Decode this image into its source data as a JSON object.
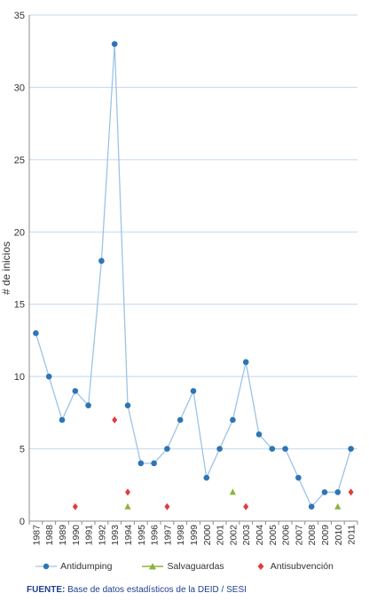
{
  "chart_data": {
    "type": "line",
    "ylabel": "# de inicios",
    "ylim": [
      0,
      35
    ],
    "yticks": [
      0,
      5,
      10,
      15,
      20,
      25,
      30,
      35
    ],
    "grid": true,
    "legend_position": "bottom",
    "categories": [
      "1987",
      "1988",
      "1989",
      "1990",
      "1991",
      "1992",
      "1993",
      "1994",
      "1995",
      "1996",
      "1997",
      "1998",
      "1999",
      "2000",
      "2001",
      "2002",
      "2003",
      "2004",
      "2005",
      "2006",
      "2007",
      "2008",
      "2009",
      "2010",
      "2011"
    ],
    "series": [
      {
        "name": "Antidumping",
        "style": "line-with-circle-markers",
        "color": "#2e75b6",
        "line_color": "#9dc3e6",
        "values": [
          13,
          10,
          7,
          9,
          8,
          18,
          33,
          8,
          4,
          4,
          5,
          7,
          9,
          3,
          5,
          7,
          11,
          6,
          5,
          5,
          3,
          1,
          2,
          2,
          5
        ]
      },
      {
        "name": "Salvaguardas",
        "style": "triangle-markers",
        "color": "#8cb43c",
        "values": [
          null,
          null,
          null,
          null,
          null,
          null,
          null,
          1,
          null,
          null,
          null,
          null,
          null,
          null,
          null,
          2,
          null,
          null,
          null,
          null,
          null,
          null,
          null,
          1,
          null
        ]
      },
      {
        "name": "Antisubvención",
        "style": "diamond-markers",
        "color": "#e03c3c",
        "values": [
          null,
          null,
          null,
          1,
          null,
          null,
          7,
          2,
          null,
          null,
          1,
          null,
          null,
          null,
          null,
          null,
          1,
          null,
          null,
          null,
          null,
          null,
          null,
          null,
          2
        ]
      }
    ]
  },
  "source": {
    "lead": "FUENTE:",
    "text": " Base de datos estadísticos de la DEID  / SESI"
  }
}
